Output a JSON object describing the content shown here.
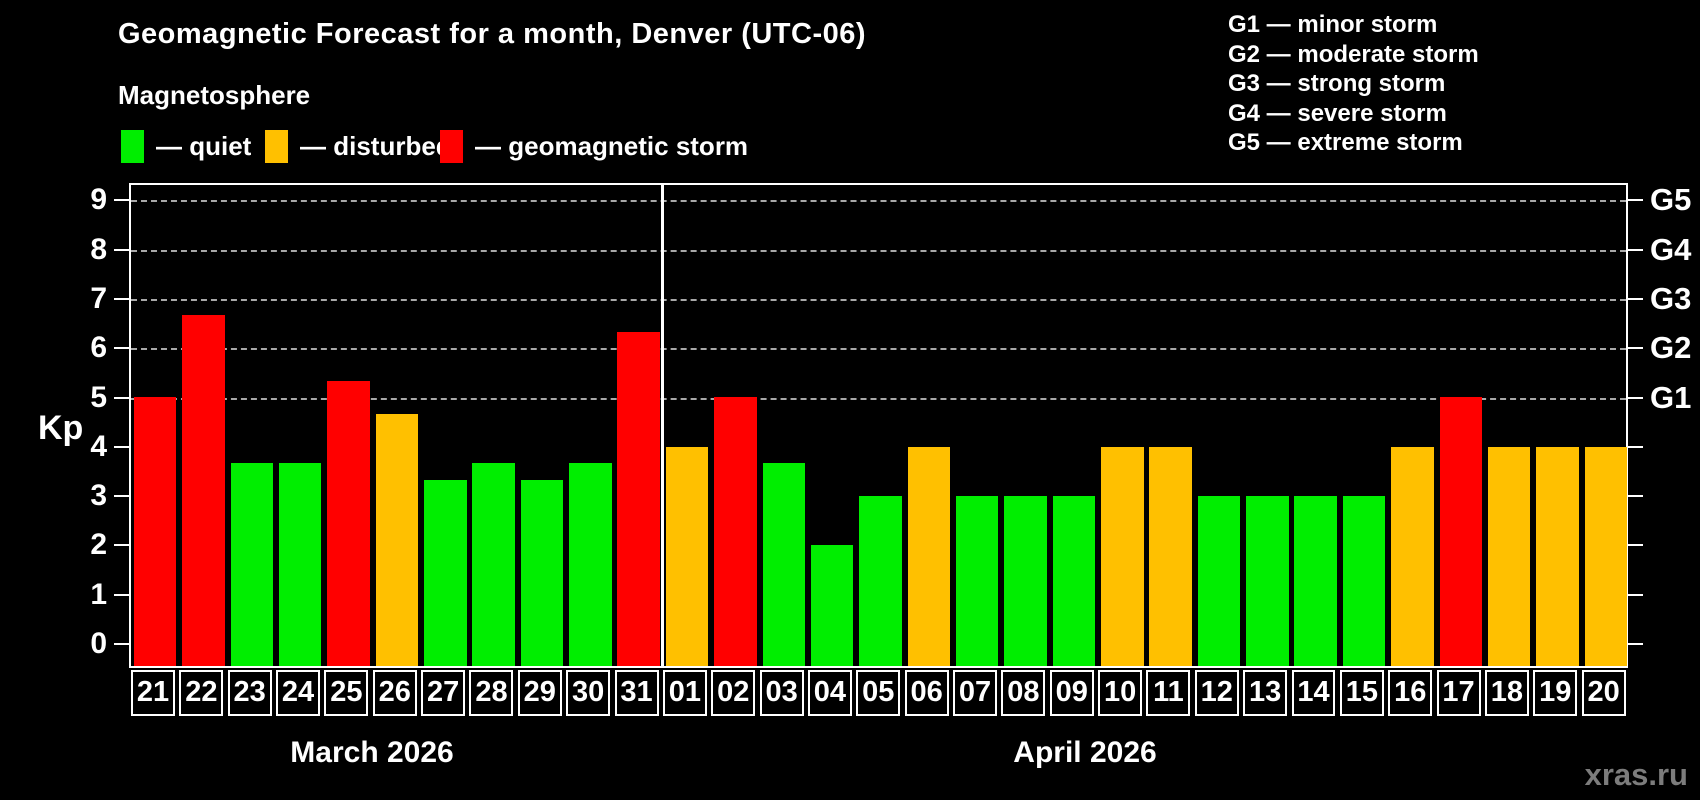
{
  "header": {
    "title": "Geomagnetic Forecast for a month, Denver (UTC-06)",
    "subtitle": "Magnetosphere"
  },
  "legend": {
    "items": [
      {
        "name": "quiet",
        "label": "— quiet",
        "color": "#00ee00"
      },
      {
        "name": "disturbed",
        "label": "— disturbed",
        "color": "#ffc000"
      },
      {
        "name": "storm",
        "label": "— geomagnetic storm",
        "color": "#ff0000"
      }
    ]
  },
  "g_scale_legend": {
    "lines": [
      "G1 — minor storm",
      "G2 — moderate storm",
      "G3 — strong storm",
      "G4 — severe storm",
      "G5 — extreme storm"
    ]
  },
  "axis": {
    "y_title": "Kp",
    "y_ticks": [
      0,
      1,
      2,
      3,
      4,
      5,
      6,
      7,
      8,
      9
    ],
    "right_labels": [
      {
        "kp": 5,
        "label": "G1"
      },
      {
        "kp": 6,
        "label": "G2"
      },
      {
        "kp": 7,
        "label": "G3"
      },
      {
        "kp": 8,
        "label": "G4"
      },
      {
        "kp": 9,
        "label": "G5"
      }
    ]
  },
  "watermark": "xras.ru",
  "chart_data": {
    "type": "bar",
    "title": "Geomagnetic Forecast for a month, Denver (UTC-06)",
    "subtitle": "Magnetosphere",
    "ylabel": "Kp",
    "ylim": [
      0,
      9
    ],
    "grid": "dashed horizontal at Kp 5-9 (G1-G5 levels)",
    "legend_position": "top-left (status colors), top-right (G-scale)",
    "status_colors": {
      "quiet": "#00ee00",
      "disturbed": "#ffc000",
      "storm": "#ff0000"
    },
    "months": [
      {
        "label": "March 2026",
        "days": [
          {
            "day": "21",
            "kp": 5.0,
            "status": "storm"
          },
          {
            "day": "22",
            "kp": 6.67,
            "status": "storm"
          },
          {
            "day": "23",
            "kp": 3.67,
            "status": "quiet"
          },
          {
            "day": "24",
            "kp": 3.67,
            "status": "quiet"
          },
          {
            "day": "25",
            "kp": 5.33,
            "status": "storm"
          },
          {
            "day": "26",
            "kp": 4.67,
            "status": "disturbed"
          },
          {
            "day": "27",
            "kp": 3.33,
            "status": "quiet"
          },
          {
            "day": "28",
            "kp": 3.67,
            "status": "quiet"
          },
          {
            "day": "29",
            "kp": 3.33,
            "status": "quiet"
          },
          {
            "day": "30",
            "kp": 3.67,
            "status": "quiet"
          },
          {
            "day": "31",
            "kp": 6.33,
            "status": "storm"
          }
        ]
      },
      {
        "label": "April 2026",
        "days": [
          {
            "day": "01",
            "kp": 4.0,
            "status": "disturbed"
          },
          {
            "day": "02",
            "kp": 5.0,
            "status": "storm"
          },
          {
            "day": "03",
            "kp": 3.67,
            "status": "quiet"
          },
          {
            "day": "04",
            "kp": 2.0,
            "status": "quiet"
          },
          {
            "day": "05",
            "kp": 3.0,
            "status": "quiet"
          },
          {
            "day": "06",
            "kp": 4.0,
            "status": "disturbed"
          },
          {
            "day": "07",
            "kp": 3.0,
            "status": "quiet"
          },
          {
            "day": "08",
            "kp": 3.0,
            "status": "quiet"
          },
          {
            "day": "09",
            "kp": 3.0,
            "status": "quiet"
          },
          {
            "day": "10",
            "kp": 4.0,
            "status": "disturbed"
          },
          {
            "day": "11",
            "kp": 4.0,
            "status": "disturbed"
          },
          {
            "day": "12",
            "kp": 3.0,
            "status": "quiet"
          },
          {
            "day": "13",
            "kp": 3.0,
            "status": "quiet"
          },
          {
            "day": "14",
            "kp": 3.0,
            "status": "quiet"
          },
          {
            "day": "15",
            "kp": 3.0,
            "status": "quiet"
          },
          {
            "day": "16",
            "kp": 4.0,
            "status": "disturbed"
          },
          {
            "day": "17",
            "kp": 5.0,
            "status": "storm"
          },
          {
            "day": "18",
            "kp": 4.0,
            "status": "disturbed"
          },
          {
            "day": "19",
            "kp": 4.0,
            "status": "disturbed"
          },
          {
            "day": "20",
            "kp": 4.0,
            "status": "disturbed"
          }
        ]
      }
    ]
  }
}
